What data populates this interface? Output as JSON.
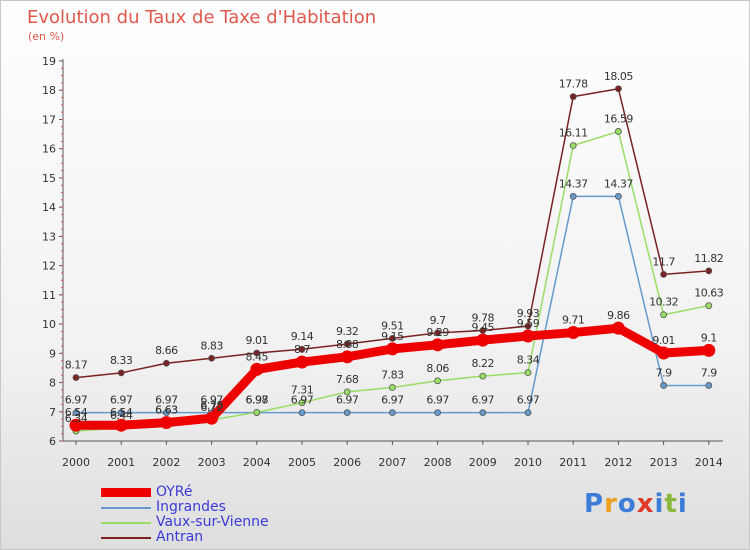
{
  "title": "Evolution du Taux de Taxe d'Habitation",
  "subtitle": "(en %)",
  "chart_data": {
    "type": "line",
    "x": [
      "2000",
      "2001",
      "2002",
      "2003",
      "2004",
      "2005",
      "2006",
      "2007",
      "2008",
      "2009",
      "2010",
      "2011",
      "2012",
      "2013",
      "2014"
    ],
    "ylim": [
      6,
      19
    ],
    "yticks": [
      6,
      7,
      8,
      9,
      10,
      11,
      12,
      13,
      14,
      15,
      16,
      17,
      18,
      19
    ],
    "grid": false,
    "legend_position": "bottom-left",
    "series": [
      {
        "name": "OYRé",
        "color": "#ee0000",
        "values": [
          6.54,
          6.54,
          6.63,
          6.78,
          8.45,
          8.7,
          8.88,
          9.15,
          9.29,
          9.45,
          9.59,
          9.71,
          9.86,
          9.01,
          9.1
        ],
        "labels": [
          "6.54",
          "6.54",
          "6.63",
          "6.78",
          "8.45",
          "8.7",
          "8.88",
          "9.15",
          "9.29",
          "9.45",
          "9.59",
          "9.71",
          "9.86",
          "9.01",
          "9.1"
        ]
      },
      {
        "name": "Ingrandes",
        "color": "#6699cc",
        "values": [
          6.97,
          6.97,
          6.97,
          6.97,
          6.97,
          6.97,
          6.97,
          6.97,
          6.97,
          6.97,
          6.97,
          14.37,
          14.37,
          7.9,
          7.9
        ],
        "labels": [
          "6.97",
          "6.97",
          "6.97",
          "6.97",
          "6.97",
          "6.97",
          "6.97",
          "6.97",
          "6.97",
          "6.97",
          "6.97",
          "14.37",
          "14.37",
          "7.9",
          "7.9"
        ]
      },
      {
        "name": "Vaux-sur-Vienne",
        "color": "#99dd66",
        "values": [
          6.34,
          6.44,
          6.63,
          6.72,
          6.98,
          7.31,
          7.68,
          7.83,
          8.06,
          8.22,
          8.34,
          16.11,
          16.59,
          10.32,
          10.63
        ],
        "labels": [
          "6.34",
          "6.44",
          "6.63",
          "6.72",
          "6.98",
          "7.31",
          "7.68",
          "7.83",
          "8.06",
          "8.22",
          "8.34",
          "16.11",
          "16.59",
          "10.32",
          "10.63"
        ]
      },
      {
        "name": "Antran",
        "color": "#7a2222",
        "values": [
          8.17,
          8.33,
          8.66,
          8.83,
          9.01,
          9.14,
          9.32,
          9.51,
          9.7,
          9.78,
          9.93,
          17.78,
          18.05,
          11.7,
          11.82
        ],
        "labels": [
          "8.17",
          "8.33",
          "8.66",
          "8.83",
          "9.01",
          "9.14",
          "9.32",
          "9.51",
          "9.7",
          "9.78",
          "9.93",
          "17.78",
          "18.05",
          "11.7",
          "11.82"
        ]
      }
    ]
  },
  "logo": {
    "text": "Proxiti",
    "letters": [
      {
        "ch": "P",
        "color": "#3d7dd8"
      },
      {
        "ch": "r",
        "color": "#f0a020"
      },
      {
        "ch": "o",
        "color": "#3d7dd8"
      },
      {
        "ch": "x",
        "color": "#e03a2a"
      },
      {
        "ch": "i",
        "color": "#3d7dd8"
      },
      {
        "ch": "t",
        "color": "#8ab83a"
      },
      {
        "ch": "i",
        "color": "#3d7dd8"
      }
    ]
  }
}
